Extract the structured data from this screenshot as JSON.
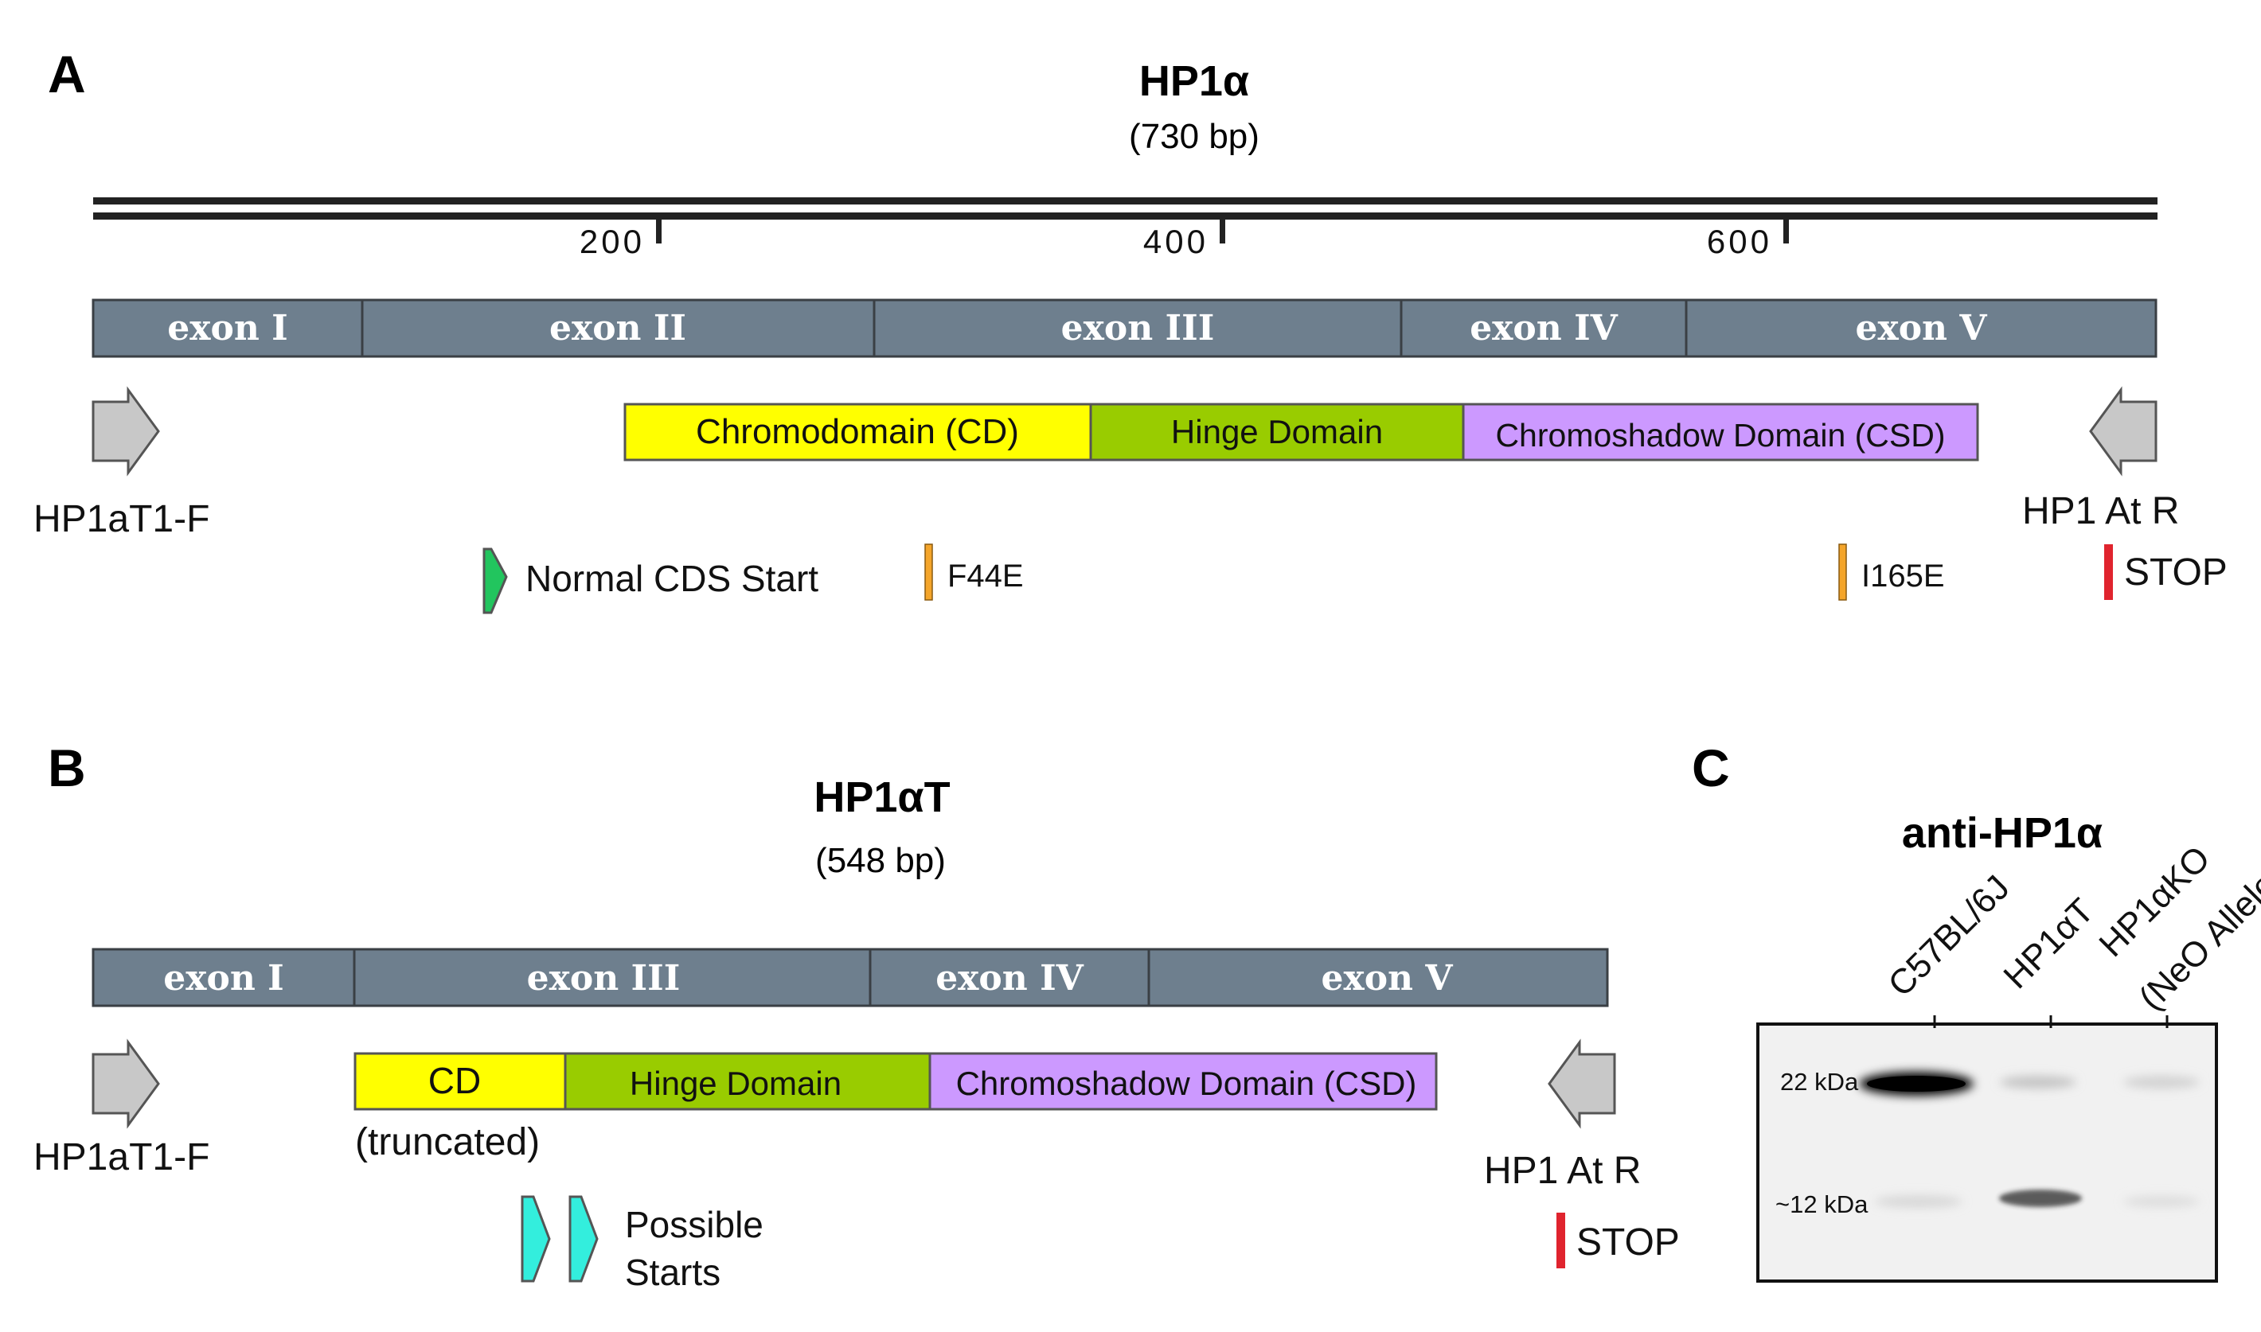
{
  "colors": {
    "exon_fill": "#6e7f8e",
    "cd_yellow": "#ffff00",
    "hinge_green": "#99cc00",
    "csd_purple": "#cc99ff",
    "arrow_gray": "#c8c8c8",
    "start_green": "#22c55e",
    "start_cyan": "#33eedd",
    "mutation_orange": "#f4a52a",
    "stop_red": "#e0242e"
  },
  "panel_a": {
    "letter": "A",
    "title": "HP1α",
    "subtitle": "(730 bp)",
    "ruler_ticks": [
      {
        "label": "200",
        "value": 200
      },
      {
        "label": "400",
        "value": 400
      },
      {
        "label": "600",
        "value": 600
      }
    ],
    "exons": [
      "exon I",
      "exon II",
      "exon III",
      "exon IV",
      "exon V"
    ],
    "domains": [
      "Chromodomain (CD)",
      "Hinge Domain",
      "Chromoshadow Domain (CSD)"
    ],
    "forward_primer": "HP1aT1-F",
    "reverse_primer": "HP1 At R",
    "cds_start": "Normal CDS Start",
    "mutations": [
      "F44E",
      "I165E"
    ],
    "stop": "STOP",
    "icons": {
      "primer": "gray-arrow-icon",
      "start": "green-arrow-icon"
    }
  },
  "panel_b": {
    "letter": "B",
    "title": "HP1αT",
    "subtitle": "(548 bp)",
    "exons": [
      "exon I",
      "exon III",
      "exon IV",
      "exon V"
    ],
    "domains": [
      "CD",
      "Hinge Domain",
      "Chromoshadow Domain (CSD)"
    ],
    "cd_note": "(truncated)",
    "forward_primer": "HP1aT1-F",
    "reverse_primer": "HP1 At R",
    "starts_line1": "Possible",
    "starts_line2": "Starts",
    "stop": "STOP",
    "icons": {
      "start": "cyan-arrow-icon"
    }
  },
  "panel_c": {
    "letter": "C",
    "title": "anti-HP1α",
    "lanes": [
      "C57BL/6J",
      "HP1αT",
      "HP1αKO",
      "(NeO Allele)"
    ],
    "markers": [
      "22 kDa",
      "~12 kDa"
    ]
  }
}
